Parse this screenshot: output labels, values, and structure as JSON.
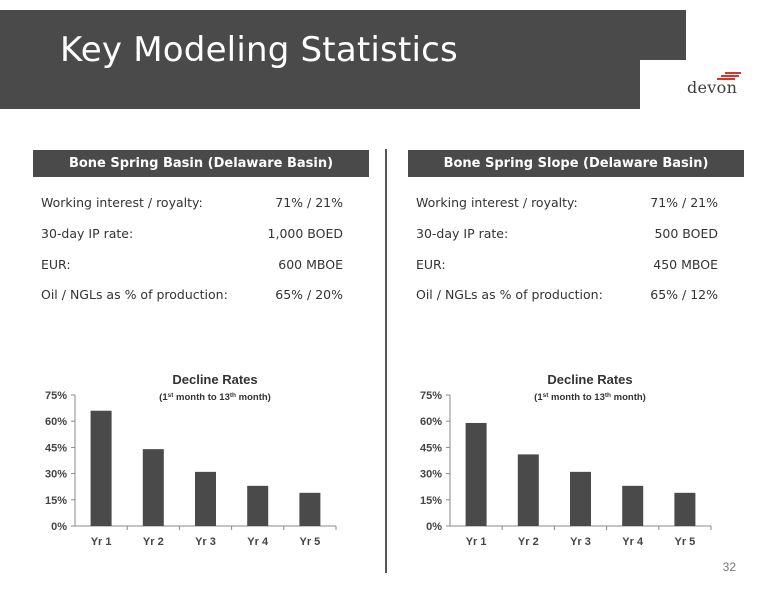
{
  "slide": {
    "title": "Key Modeling Statistics",
    "logo_text": "devon",
    "page_number": "32",
    "colors": {
      "header": "#4a4a4a",
      "bar": "#4a4a4a",
      "logo_accent": "#d9332b"
    }
  },
  "panels": [
    {
      "header": "Bone Spring Basin (Delaware Basin)",
      "stats": [
        {
          "label": "Working interest / royalty:",
          "value": "71% / 21%"
        },
        {
          "label": "30-day IP rate:",
          "value": "1,000 BOED"
        },
        {
          "label": "EUR:",
          "value": "600 MBOE"
        },
        {
          "label": "Oil / NGLs as % of production:",
          "value": "65% / 20%"
        }
      ]
    },
    {
      "header": "Bone Spring Slope (Delaware Basin)",
      "stats": [
        {
          "label": "Working interest / royalty:",
          "value": "71% / 21%"
        },
        {
          "label": "30-day IP rate:",
          "value": "500 BOED"
        },
        {
          "label": "EUR:",
          "value": "450 MBOE"
        },
        {
          "label": "Oil / NGLs as % of production:",
          "value": "65% / 12%"
        }
      ]
    }
  ],
  "chart_data": [
    {
      "type": "bar",
      "title": "Decline Rates",
      "subtitle": "(1st month to 13th month)",
      "categories": [
        "Yr 1",
        "Yr 2",
        "Yr 3",
        "Yr 4",
        "Yr 5"
      ],
      "values": [
        66,
        44,
        31,
        23,
        19
      ],
      "ylim": [
        0,
        75
      ],
      "yticks": [
        "0%",
        "15%",
        "30%",
        "45%",
        "60%",
        "75%"
      ],
      "ytick_values": [
        0,
        15,
        30,
        45,
        60,
        75
      ],
      "grid": false,
      "legend": "none"
    },
    {
      "type": "bar",
      "title": "Decline Rates",
      "subtitle": "(1st month to 13th month)",
      "categories": [
        "Yr 1",
        "Yr 2",
        "Yr 3",
        "Yr 4",
        "Yr 5"
      ],
      "values": [
        59,
        41,
        31,
        23,
        19
      ],
      "ylim": [
        0,
        75
      ],
      "yticks": [
        "0%",
        "15%",
        "30%",
        "45%",
        "60%",
        "75%"
      ],
      "ytick_values": [
        0,
        15,
        30,
        45,
        60,
        75
      ],
      "grid": false,
      "legend": "none"
    }
  ]
}
